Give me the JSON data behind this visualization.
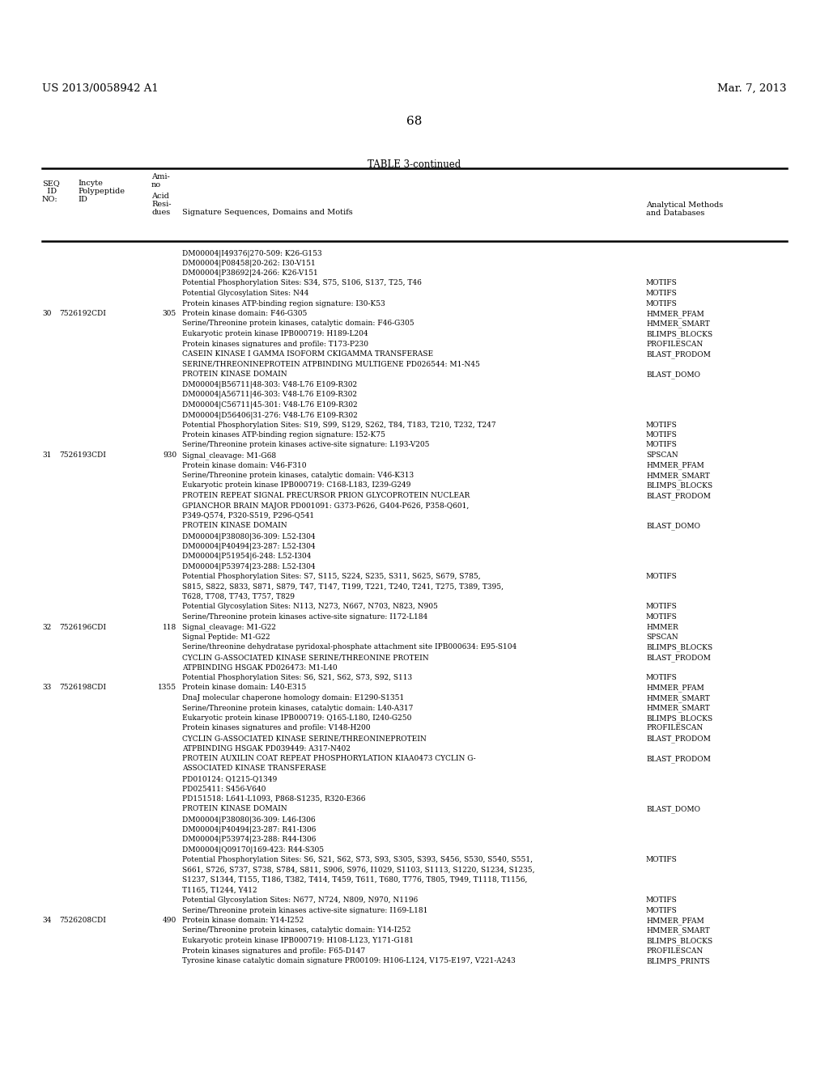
{
  "left_header": "US 2013/0058942 A1",
  "right_header": "Mar. 7, 2013",
  "page_number": "68",
  "table_title": "TABLE 3-continued",
  "bg_color": "#ffffff",
  "text_color": "#000000",
  "line_color": "#000000",
  "font_size": 6.5,
  "header_font_size": 7.0,
  "rows": [
    {
      "seq": "",
      "incyte": "",
      "residues": "",
      "signature": "DM00004|I49376|270-509: K26-G153",
      "method": ""
    },
    {
      "seq": "",
      "incyte": "",
      "residues": "",
      "signature": "DM00004|P08458|20-262: I30-V151",
      "method": ""
    },
    {
      "seq": "",
      "incyte": "",
      "residues": "",
      "signature": "DM00004|P38692|24-266: K26-V151",
      "method": ""
    },
    {
      "seq": "",
      "incyte": "",
      "residues": "",
      "signature": "Potential Phosphorylation Sites: S34, S75, S106, S137, T25, T46",
      "method": "MOTIFS"
    },
    {
      "seq": "",
      "incyte": "",
      "residues": "",
      "signature": "Potential Glycosylation Sites: N44",
      "method": "MOTIFS"
    },
    {
      "seq": "",
      "incyte": "",
      "residues": "",
      "signature": "Protein kinases ATP-binding region signature: I30-K53",
      "method": "MOTIFS"
    },
    {
      "seq": "30",
      "incyte": "7526192CDI",
      "residues": "305",
      "signature": "Protein kinase domain: F46-G305",
      "method": "HMMER_PFAM"
    },
    {
      "seq": "",
      "incyte": "",
      "residues": "",
      "signature": "Serine/Threonine protein kinases, catalytic domain: F46-G305",
      "method": "HMMER_SMART"
    },
    {
      "seq": "",
      "incyte": "",
      "residues": "",
      "signature": "Eukaryotic protein kinase IPB000719: H189-L204",
      "method": "BLIMPS_BLOCKS"
    },
    {
      "seq": "",
      "incyte": "",
      "residues": "",
      "signature": "Protein kinases signatures and profile: T173-P230",
      "method": "PROFILESCAN"
    },
    {
      "seq": "",
      "incyte": "",
      "residues": "",
      "signature": "CASEIN KINASE I GAMMA ISOFORM CKIGAMMA TRANSFERASE",
      "method": "BLAST_PRODOM"
    },
    {
      "seq": "",
      "incyte": "",
      "residues": "",
      "signature": "SERINE/THREONINEPROTEIN ATPBINDING MULTIGENE PD026544: M1-N45",
      "method": ""
    },
    {
      "seq": "",
      "incyte": "",
      "residues": "",
      "signature": "PROTEIN KINASE DOMAIN",
      "method": "BLAST_DOMO"
    },
    {
      "seq": "",
      "incyte": "",
      "residues": "",
      "signature": "DM00004|B56711|48-303: V48-L76 E109-R302",
      "method": ""
    },
    {
      "seq": "",
      "incyte": "",
      "residues": "",
      "signature": "DM00004|A56711|46-303: V48-L76 E109-R302",
      "method": ""
    },
    {
      "seq": "",
      "incyte": "",
      "residues": "",
      "signature": "DM00004|C56711|45-301: V48-L76 E109-R302",
      "method": ""
    },
    {
      "seq": "",
      "incyte": "",
      "residues": "",
      "signature": "DM00004|D56406|31-276: V48-L76 E109-R302",
      "method": ""
    },
    {
      "seq": "",
      "incyte": "",
      "residues": "",
      "signature": "Potential Phosphorylation Sites: S19, S99, S129, S262, T84, T183, T210, T232, T247",
      "method": "MOTIFS"
    },
    {
      "seq": "",
      "incyte": "",
      "residues": "",
      "signature": "Protein kinases ATP-binding region signature: I52-K75",
      "method": "MOTIFS"
    },
    {
      "seq": "",
      "incyte": "",
      "residues": "",
      "signature": "Serine/Threonine protein kinases active-site signature: L193-V205",
      "method": "MOTIFS"
    },
    {
      "seq": "31",
      "incyte": "7526193CDI",
      "residues": "930",
      "signature": "Signal_cleavage: M1-G68",
      "method": "SPSCAN"
    },
    {
      "seq": "",
      "incyte": "",
      "residues": "",
      "signature": "Protein kinase domain: V46-F310",
      "method": "HMMER_PFAM"
    },
    {
      "seq": "",
      "incyte": "",
      "residues": "",
      "signature": "Serine/Threonine protein kinases, catalytic domain: V46-K313",
      "method": "HMMER_SMART"
    },
    {
      "seq": "",
      "incyte": "",
      "residues": "",
      "signature": "Eukaryotic protein kinase IPB000719: C168-L183, I239-G249",
      "method": "BLIMPS_BLOCKS"
    },
    {
      "seq": "",
      "incyte": "",
      "residues": "",
      "signature": "PROTEIN REPEAT SIGNAL PRECURSOR PRION GLYCOPROTEIN NUCLEAR",
      "method": "BLAST_PRODOM"
    },
    {
      "seq": "",
      "incyte": "",
      "residues": "",
      "signature": "GPIANCHOR BRAIN MAJOR PD001091: G373-P626, G404-P626, P358-Q601,",
      "method": ""
    },
    {
      "seq": "",
      "incyte": "",
      "residues": "",
      "signature": "P349-Q574, P320-S519, P296-Q541",
      "method": ""
    },
    {
      "seq": "",
      "incyte": "",
      "residues": "",
      "signature": "PROTEIN KINASE DOMAIN",
      "method": "BLAST_DOMO"
    },
    {
      "seq": "",
      "incyte": "",
      "residues": "",
      "signature": "DM00004|P38080|36-309: L52-I304",
      "method": ""
    },
    {
      "seq": "",
      "incyte": "",
      "residues": "",
      "signature": "DM00004|P40494|23-287: L52-I304",
      "method": ""
    },
    {
      "seq": "",
      "incyte": "",
      "residues": "",
      "signature": "DM00004|P51954|6-248: L52-I304",
      "method": ""
    },
    {
      "seq": "",
      "incyte": "",
      "residues": "",
      "signature": "DM00004|P53974|23-288: L52-I304",
      "method": ""
    },
    {
      "seq": "",
      "incyte": "",
      "residues": "",
      "signature": "Potential Phosphorylation Sites: S7, S115, S224, S235, S311, S625, S679, S785,",
      "method": "MOTIFS"
    },
    {
      "seq": "",
      "incyte": "",
      "residues": "",
      "signature": "S815, S822, S833, S871, S879, T47, T147, T199, T221, T240, T241, T275, T389, T395,",
      "method": ""
    },
    {
      "seq": "",
      "incyte": "",
      "residues": "",
      "signature": "T628, T708, T743, T757, T829",
      "method": ""
    },
    {
      "seq": "",
      "incyte": "",
      "residues": "",
      "signature": "Potential Glycosylation Sites: N113, N273, N667, N703, N823, N905",
      "method": "MOTIFS"
    },
    {
      "seq": "",
      "incyte": "",
      "residues": "",
      "signature": "Serine/Threonine protein kinases active-site signature: I172-L184",
      "method": "MOTIFS"
    },
    {
      "seq": "32",
      "incyte": "7526196CDI",
      "residues": "118",
      "signature": "Signal_cleavage: M1-G22",
      "method": "HMMER"
    },
    {
      "seq": "",
      "incyte": "",
      "residues": "",
      "signature": "Signal Peptide: M1-G22",
      "method": "SPSCAN"
    },
    {
      "seq": "",
      "incyte": "",
      "residues": "",
      "signature": "Serine/threonine dehydratase pyridoxal-phosphate attachment site IPB000634: E95-S104",
      "method": "BLIMPS_BLOCKS"
    },
    {
      "seq": "",
      "incyte": "",
      "residues": "",
      "signature": "CYCLIN G-ASSOCIATED KINASE SERINE/THREONINE PROTEIN",
      "method": "BLAST_PRODOM"
    },
    {
      "seq": "",
      "incyte": "",
      "residues": "",
      "signature": "ATPBINDING HSGAK PD026473: M1-L40",
      "method": ""
    },
    {
      "seq": "",
      "incyte": "",
      "residues": "",
      "signature": "Potential Phosphorylation Sites: S6, S21, S62, S73, S92, S113",
      "method": "MOTIFS"
    },
    {
      "seq": "33",
      "incyte": "7526198CDI",
      "residues": "1355",
      "signature": "Protein kinase domain: L40-E315",
      "method": "HMMER_PFAM"
    },
    {
      "seq": "",
      "incyte": "",
      "residues": "",
      "signature": "DnaJ molecular chaperone homology domain: E1290-S1351",
      "method": "HMMER_SMART"
    },
    {
      "seq": "",
      "incyte": "",
      "residues": "",
      "signature": "Serine/Threonine protein kinases, catalytic domain: L40-A317",
      "method": "HMMER_SMART"
    },
    {
      "seq": "",
      "incyte": "",
      "residues": "",
      "signature": "Eukaryotic protein kinase IPB000719: Q165-L180, I240-G250",
      "method": "BLIMPS_BLOCKS"
    },
    {
      "seq": "",
      "incyte": "",
      "residues": "",
      "signature": "Protein kinases signatures and profile: V148-H200",
      "method": "PROFILESCAN"
    },
    {
      "seq": "",
      "incyte": "",
      "residues": "",
      "signature": "CYCLIN G-ASSOCIATED KINASE SERINE/THREONINEPROTEIN",
      "method": "BLAST_PRODOM"
    },
    {
      "seq": "",
      "incyte": "",
      "residues": "",
      "signature": "ATPBINDING HSGAK PD039449: A317-N402",
      "method": ""
    },
    {
      "seq": "",
      "incyte": "",
      "residues": "",
      "signature": "PROTEIN AUXILIN COAT REPEAT PHOSPHORYLATION KIAA0473 CYCLIN G-",
      "method": "BLAST_PRODOM"
    },
    {
      "seq": "",
      "incyte": "",
      "residues": "",
      "signature": "ASSOCIATED KINASE TRANSFERASE",
      "method": ""
    },
    {
      "seq": "",
      "incyte": "",
      "residues": "",
      "signature": "PD010124: Q1215-Q1349",
      "method": ""
    },
    {
      "seq": "",
      "incyte": "",
      "residues": "",
      "signature": "PD025411: S456-V640",
      "method": ""
    },
    {
      "seq": "",
      "incyte": "",
      "residues": "",
      "signature": "PD151518: L641-L1093, P868-S1235, R320-E366",
      "method": ""
    },
    {
      "seq": "",
      "incyte": "",
      "residues": "",
      "signature": "PROTEIN KINASE DOMAIN",
      "method": "BLAST_DOMO"
    },
    {
      "seq": "",
      "incyte": "",
      "residues": "",
      "signature": "DM00004|P38080|36-309: L46-I306",
      "method": ""
    },
    {
      "seq": "",
      "incyte": "",
      "residues": "",
      "signature": "DM00004|P40494|23-287: R41-I306",
      "method": ""
    },
    {
      "seq": "",
      "incyte": "",
      "residues": "",
      "signature": "DM00004|P53974|23-288: R44-I306",
      "method": ""
    },
    {
      "seq": "",
      "incyte": "",
      "residues": "",
      "signature": "DM00004|Q09170|169-423: R44-S305",
      "method": ""
    },
    {
      "seq": "",
      "incyte": "",
      "residues": "",
      "signature": "Potential Phosphorylation Sites: S6, S21, S62, S73, S93, S305, S393, S456, S530, S540, S551,",
      "method": "MOTIFS"
    },
    {
      "seq": "",
      "incyte": "",
      "residues": "",
      "signature": "S661, S726, S737, S738, S784, S811, S906, S976, I1029, S1103, S1113, S1220, S1234, S1235,",
      "method": ""
    },
    {
      "seq": "",
      "incyte": "",
      "residues": "",
      "signature": "S1237, S1344, T155, T186, T382, T414, T459, T611, T680, T776, T805, T949, T1118, T1156,",
      "method": ""
    },
    {
      "seq": "",
      "incyte": "",
      "residues": "",
      "signature": "T1165, T1244, Y412",
      "method": ""
    },
    {
      "seq": "",
      "incyte": "",
      "residues": "",
      "signature": "Potential Glycosylation Sites: N677, N724, N809, N970, N1196",
      "method": "MOTIFS"
    },
    {
      "seq": "",
      "incyte": "",
      "residues": "",
      "signature": "Serine/Threonine protein kinases active-site signature: I169-L181",
      "method": "MOTIFS"
    },
    {
      "seq": "34",
      "incyte": "7526208CDI",
      "residues": "490",
      "signature": "Protein kinase domain: Y14-I252",
      "method": "HMMER_PFAM"
    },
    {
      "seq": "",
      "incyte": "",
      "residues": "",
      "signature": "Serine/Threonine protein kinases, catalytic domain: Y14-I252",
      "method": "HMMER_SMART"
    },
    {
      "seq": "",
      "incyte": "",
      "residues": "",
      "signature": "Eukaryotic protein kinase IPB000719: H108-L123, Y171-G181",
      "method": "BLIMPS_BLOCKS"
    },
    {
      "seq": "",
      "incyte": "",
      "residues": "",
      "signature": "Protein kinases signatures and profile: F65-D147",
      "method": "PROFILESCAN"
    },
    {
      "seq": "",
      "incyte": "",
      "residues": "",
      "signature": "Tyrosine kinase catalytic domain signature PR00109: H106-L124, V175-E197, V221-A243",
      "method": "BLIMPS_PRINTS"
    }
  ]
}
